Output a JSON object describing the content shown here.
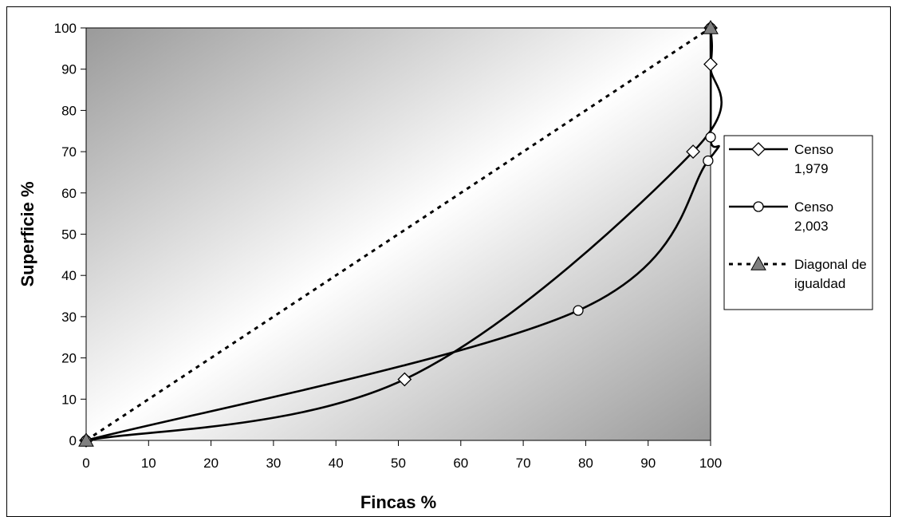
{
  "chart_data": {
    "type": "line",
    "title": "",
    "xlabel": "Fincas %",
    "ylabel": "Superficie %",
    "xlim": [
      0,
      100
    ],
    "ylim": [
      0,
      100
    ],
    "xticks": [
      0,
      10,
      20,
      30,
      40,
      50,
      60,
      70,
      80,
      90,
      100
    ],
    "yticks": [
      0,
      10,
      20,
      30,
      40,
      50,
      60,
      70,
      80,
      90,
      100
    ],
    "grid": false,
    "legend_position": "right",
    "series": [
      {
        "name": "Censo 1,979",
        "marker": "diamond",
        "line_style": "solid",
        "color": "#000000",
        "x": [
          0,
          51,
          97.2,
          100,
          100
        ],
        "y": [
          0,
          14.8,
          70,
          91.2,
          100
        ]
      },
      {
        "name": "Censo 2,003",
        "marker": "circle",
        "line_style": "solid",
        "color": "#000000",
        "x": [
          0,
          78.8,
          99.6,
          100,
          100
        ],
        "y": [
          0,
          31.5,
          67.8,
          73.5,
          100
        ]
      },
      {
        "name": "Diagonal de igualdad",
        "marker": "triangle",
        "line_style": "dashed",
        "color": "#000000",
        "marker_color": "#808080",
        "x": [
          0,
          100
        ],
        "y": [
          0,
          100
        ]
      }
    ],
    "legend": [
      {
        "line1": "Censo",
        "line2": "1,979"
      },
      {
        "line1": "Censo",
        "line2": "2,003"
      },
      {
        "line1": "Diagonal de",
        "line2": "igualdad"
      }
    ],
    "colors": {
      "plot_gradient_light": "#ffffff",
      "plot_gradient_dark": "#9a9a9a",
      "triangle_fill": "#808080"
    }
  }
}
